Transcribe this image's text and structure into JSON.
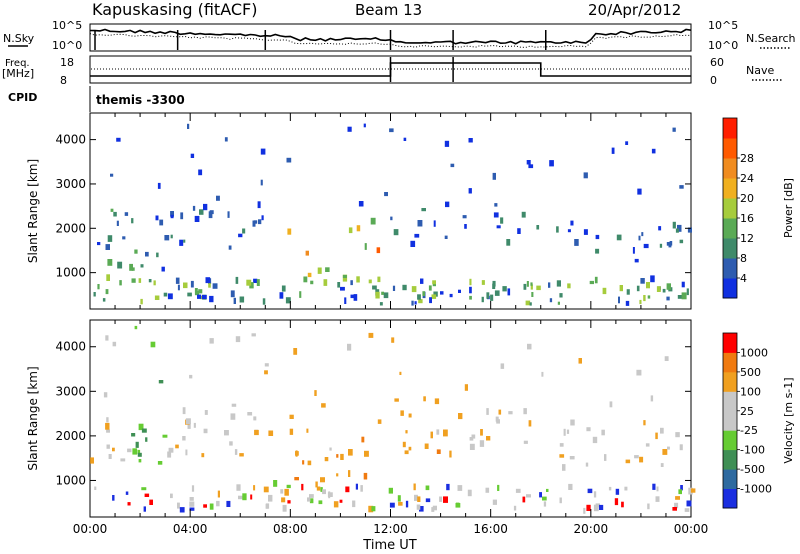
{
  "header": {
    "station": "Kapuskasing (fitACF)",
    "beam": "Beam 13",
    "date": "20/Apr/2012"
  },
  "noise_panel": {
    "left_label": "N.Sky",
    "right_label": "N.Search",
    "ticks": [
      "10^5",
      "10^0"
    ]
  },
  "freq_panel": {
    "left_label_1": "Freq.",
    "left_label_2": "[MHz]",
    "right_label": "Nave",
    "left_ticks": [
      "18",
      "8"
    ],
    "right_ticks": [
      "60",
      "0"
    ]
  },
  "cpid": {
    "label": "CPID",
    "value": "themis -3300"
  },
  "chart_data": [
    {
      "type": "heatmap",
      "title": "",
      "parameter": "Power",
      "xlabel": "",
      "ylabel": "Slant Range [km]",
      "colorbar_label": "Power [dB]",
      "colorbar_ticks": [
        "4",
        "8",
        "12",
        "16",
        "20",
        "24",
        "28"
      ],
      "colorbar_colors": [
        "#1030e0",
        "#2e5cb0",
        "#3f8a6a",
        "#5aaa55",
        "#a6cc3c",
        "#f0b020",
        "#f08c20",
        "#ff5a00",
        "#ff1e00"
      ],
      "xlim_hours": [
        0,
        24
      ],
      "ylim_km": [
        180,
        4600
      ],
      "y_ticks": [
        "1000",
        "2000",
        "3000",
        "4000"
      ],
      "x_ticks": [
        "00:00",
        "04:00",
        "08:00",
        "12:00",
        "16:00",
        "20:00",
        "00:00"
      ],
      "grid": false
    },
    {
      "type": "heatmap",
      "title": "",
      "parameter": "Velocity",
      "xlabel": "Time UT",
      "ylabel": "Slant Range [km]",
      "colorbar_label": "Velocity [m s-1]",
      "colorbar_ticks": [
        "1000",
        "500",
        "100",
        "25",
        "-25",
        "-100",
        "-500",
        "-1000"
      ],
      "colorbar_colors": [
        "#1a2ee0",
        "#2e6aa0",
        "#3f8f55",
        "#66cc33",
        "#c8c8c8",
        "#c8c8c8",
        "#f0a020",
        "#f07a10",
        "#ff0000"
      ],
      "xlim_hours": [
        0,
        24
      ],
      "ylim_km": [
        180,
        4600
      ],
      "y_ticks": [
        "1000",
        "2000",
        "3000",
        "4000"
      ],
      "x_ticks": [
        "00:00",
        "04:00",
        "08:00",
        "12:00",
        "16:00",
        "20:00",
        "00:00"
      ],
      "grid": false
    }
  ]
}
